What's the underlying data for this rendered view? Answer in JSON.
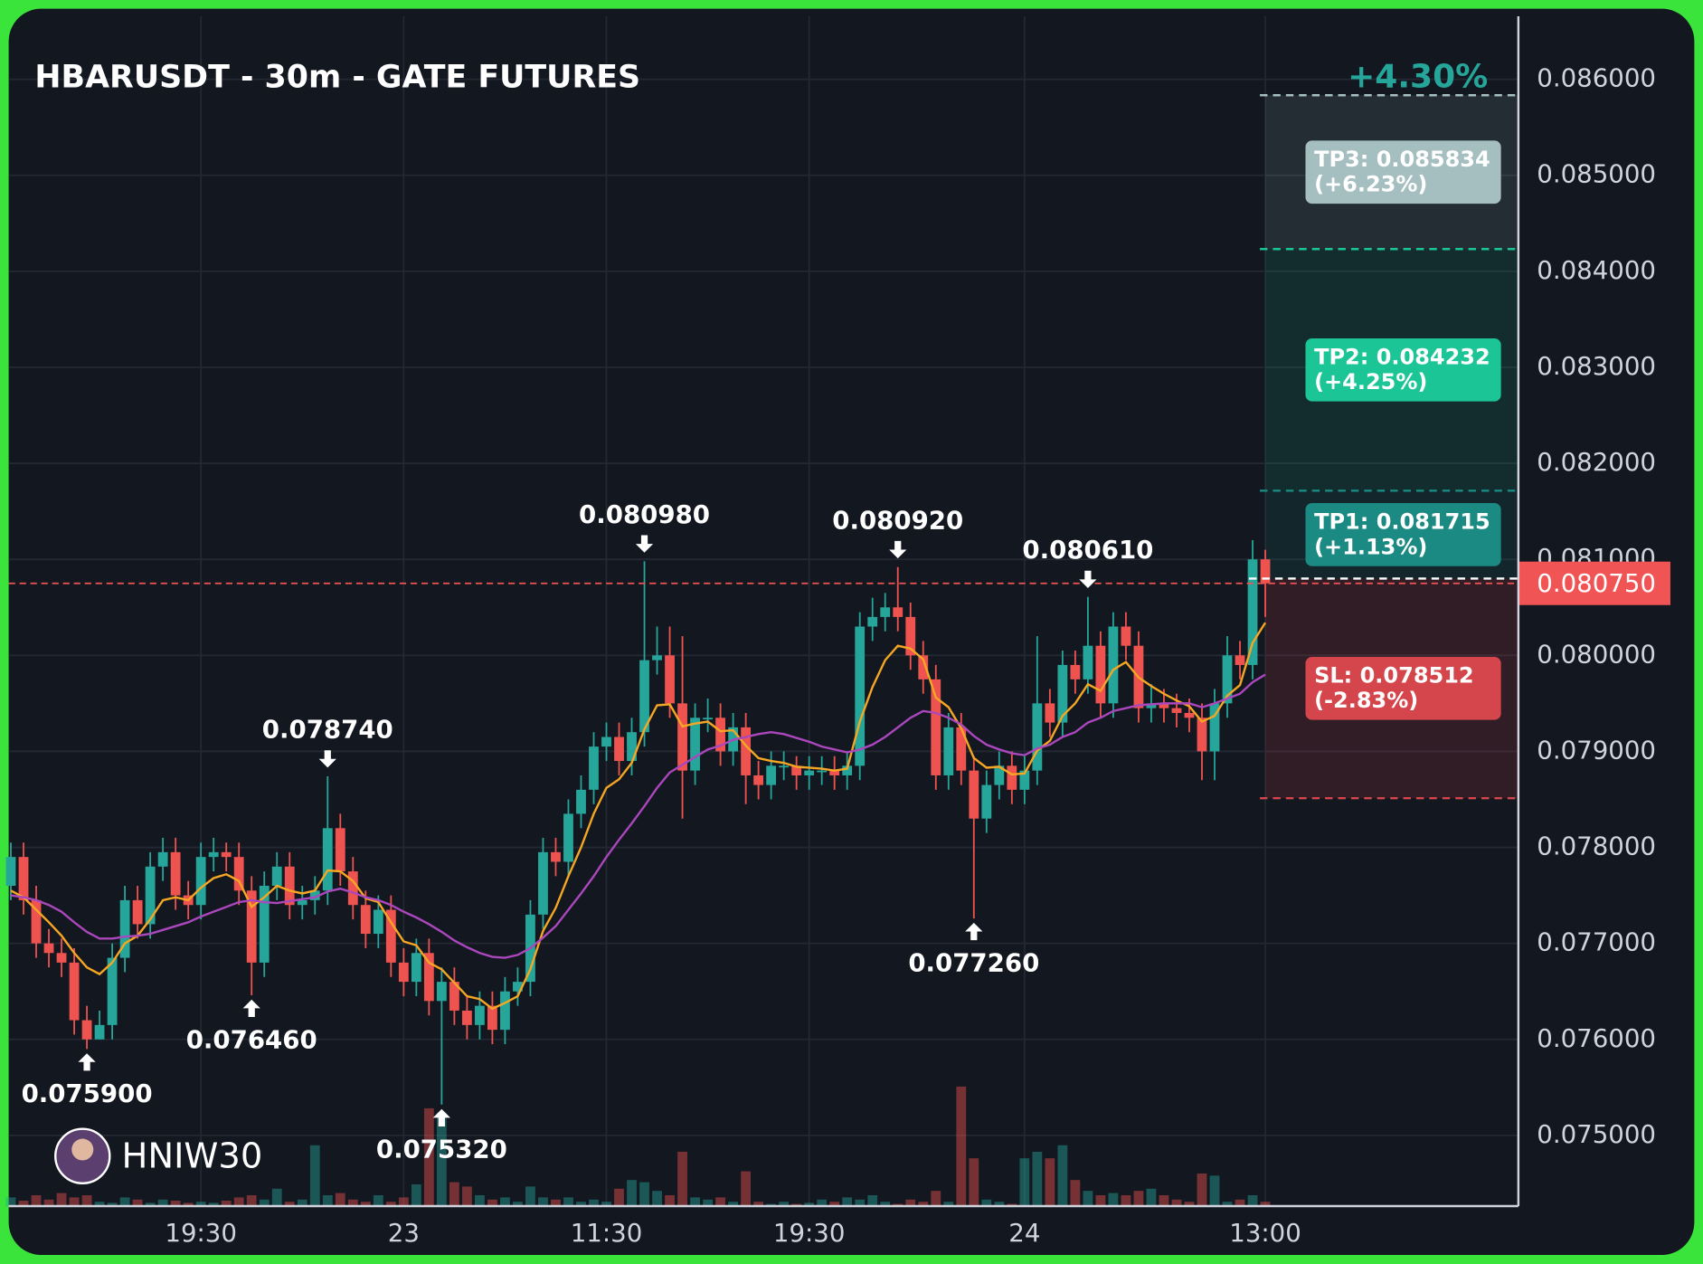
{
  "chart_data": {
    "type": "candlestick",
    "title": "HBARUSDT - 30m - GATE FUTURES",
    "watermark": "HNIW30",
    "pnl": "+4.30%",
    "pnl_color": "#26a69a",
    "up_color": "#26a69a",
    "down_color": "#ef5350",
    "grid": true,
    "ylim": [
      0.074264,
      0.086656
    ],
    "yticks": [
      {
        "value": 0.075,
        "label": "0.075000"
      },
      {
        "value": 0.076,
        "label": "0.076000"
      },
      {
        "value": 0.077,
        "label": "0.077000"
      },
      {
        "value": 0.078,
        "label": "0.078000"
      },
      {
        "value": 0.079,
        "label": "0.079000"
      },
      {
        "value": 0.08,
        "label": "0.080000"
      },
      {
        "value": 0.081,
        "label": "0.081000"
      },
      {
        "value": 0.082,
        "label": "0.082000"
      },
      {
        "value": 0.083,
        "label": "0.083000"
      },
      {
        "value": 0.084,
        "label": "0.084000"
      },
      {
        "value": 0.085,
        "label": "0.085000"
      },
      {
        "value": 0.086,
        "label": "0.086000"
      }
    ],
    "categories": [
      null,
      null,
      null,
      null,
      null,
      null,
      null,
      null,
      null,
      null,
      null,
      null,
      null,
      null,
      null,
      "19:30",
      null,
      null,
      null,
      null,
      null,
      null,
      null,
      null,
      null,
      null,
      null,
      null,
      null,
      null,
      null,
      "23",
      null,
      null,
      null,
      null,
      null,
      null,
      null,
      null,
      null,
      null,
      null,
      null,
      null,
      null,
      null,
      "11:30",
      null,
      null,
      null,
      null,
      null,
      null,
      null,
      null,
      null,
      null,
      null,
      null,
      null,
      null,
      null,
      "19:30",
      null,
      null,
      null,
      null,
      null,
      null,
      null,
      null,
      null,
      null,
      null,
      null,
      null,
      null,
      null,
      null,
      "24",
      null,
      null,
      null,
      null,
      null,
      null,
      null,
      null,
      null,
      null,
      null,
      null,
      null,
      null,
      null,
      null,
      null,
      null,
      "13:00"
    ],
    "open": [
      0.0776,
      0.0779,
      0.07745,
      0.077,
      0.0769,
      0.0768,
      0.0762,
      0.076,
      0.07615,
      0.07685,
      0.07745,
      0.0772,
      0.0778,
      0.07795,
      0.0775,
      0.0774,
      0.0779,
      0.07795,
      0.0779,
      0.07755,
      0.0768,
      0.0776,
      0.0778,
      0.0774,
      0.07745,
      0.07755,
      0.0782,
      0.07775,
      0.0774,
      0.0771,
      0.07735,
      0.0768,
      0.0766,
      0.0769,
      0.0764,
      0.0766,
      0.0763,
      0.07615,
      0.07635,
      0.0761,
      0.0765,
      0.0766,
      0.0773,
      0.07795,
      0.07785,
      0.07835,
      0.0786,
      0.07905,
      0.07915,
      0.0789,
      0.0792,
      0.07995,
      0.08,
      0.0795,
      0.0788,
      0.07935,
      0.07935,
      0.079,
      0.07925,
      0.07875,
      0.07865,
      0.07885,
      0.07885,
      0.07875,
      0.0788,
      0.0788,
      0.07875,
      0.07885,
      0.0803,
      0.0804,
      0.0805,
      0.0804,
      0.08,
      0.07975,
      0.07875,
      0.07925,
      0.0788,
      0.0783,
      0.07865,
      0.07885,
      0.0786,
      0.0788,
      0.0795,
      0.0793,
      0.0799,
      0.07975,
      0.0801,
      0.0795,
      0.0803,
      0.0801,
      0.07945,
      0.0795,
      0.07945,
      0.0794,
      0.07935,
      0.079,
      0.0795,
      0.08,
      0.0799,
      0.081
    ],
    "high": [
      0.07805,
      0.07805,
      0.0776,
      0.07715,
      0.07705,
      0.07695,
      0.07635,
      0.0763,
      0.077,
      0.0776,
      0.0776,
      0.07795,
      0.0781,
      0.0781,
      0.07765,
      0.07805,
      0.0781,
      0.07805,
      0.07805,
      0.0777,
      0.07775,
      0.07795,
      0.07795,
      0.0776,
      0.0777,
      0.07874,
      0.07835,
      0.0779,
      0.07755,
      0.0775,
      0.0775,
      0.07695,
      0.07705,
      0.07705,
      0.07675,
      0.07675,
      0.07645,
      0.0765,
      0.0765,
      0.07665,
      0.07675,
      0.07745,
      0.0781,
      0.0781,
      0.0785,
      0.07875,
      0.0792,
      0.0793,
      0.0793,
      0.07935,
      0.08098,
      0.0803,
      0.0803,
      0.0802,
      0.0795,
      0.07955,
      0.0795,
      0.0794,
      0.0794,
      0.0789,
      0.079,
      0.079,
      0.07895,
      0.07895,
      0.07895,
      0.07895,
      0.079,
      0.08045,
      0.0806,
      0.08065,
      0.08092,
      0.08055,
      0.08015,
      0.0799,
      0.0794,
      0.0794,
      0.07895,
      0.0788,
      0.079,
      0.079,
      0.07895,
      0.0802,
      0.07965,
      0.08005,
      0.08005,
      0.08061,
      0.08025,
      0.08045,
      0.08045,
      0.08025,
      0.0797,
      0.07965,
      0.0796,
      0.07955,
      0.0795,
      0.07965,
      0.0802,
      0.08015,
      0.0812,
      0.0811
    ],
    "low": [
      0.07745,
      0.0773,
      0.07685,
      0.07675,
      0.07665,
      0.07605,
      0.0759,
      0.076,
      0.076,
      0.0767,
      0.07705,
      0.07705,
      0.07765,
      0.07735,
      0.07725,
      0.07725,
      0.07775,
      0.07775,
      0.0774,
      0.07646,
      0.07665,
      0.07745,
      0.07725,
      0.07725,
      0.0773,
      0.0774,
      0.0776,
      0.07725,
      0.07695,
      0.07695,
      0.07665,
      0.07645,
      0.07645,
      0.07625,
      0.07532,
      0.07615,
      0.076,
      0.076,
      0.07595,
      0.07595,
      0.07635,
      0.07645,
      0.07715,
      0.0777,
      0.0777,
      0.0782,
      0.07845,
      0.0789,
      0.07875,
      0.07875,
      0.07905,
      0.0798,
      0.07935,
      0.0783,
      0.07865,
      0.0792,
      0.07885,
      0.07885,
      0.07845,
      0.0785,
      0.0785,
      0.0787,
      0.0786,
      0.0786,
      0.07865,
      0.0786,
      0.0786,
      0.0787,
      0.08015,
      0.08025,
      0.08025,
      0.07985,
      0.0796,
      0.0786,
      0.0786,
      0.07865,
      0.07726,
      0.07815,
      0.0785,
      0.07845,
      0.07845,
      0.07865,
      0.07915,
      0.07915,
      0.0796,
      0.0796,
      0.07935,
      0.07935,
      0.07995,
      0.0793,
      0.0793,
      0.0793,
      0.07925,
      0.0792,
      0.0787,
      0.0787,
      0.07935,
      0.07975,
      0.07975,
      0.0804
    ],
    "close": [
      0.0779,
      0.07745,
      0.077,
      0.0769,
      0.0768,
      0.0762,
      0.076,
      0.07615,
      0.07685,
      0.07745,
      0.0772,
      0.0778,
      0.07795,
      0.0775,
      0.0774,
      0.0779,
      0.07795,
      0.0779,
      0.07755,
      0.0768,
      0.0776,
      0.0778,
      0.0774,
      0.07745,
      0.07755,
      0.0782,
      0.07775,
      0.0774,
      0.0771,
      0.07735,
      0.0768,
      0.0766,
      0.0769,
      0.0764,
      0.0766,
      0.0763,
      0.07615,
      0.07635,
      0.0761,
      0.0765,
      0.0766,
      0.0773,
      0.07795,
      0.07785,
      0.07835,
      0.0786,
      0.07905,
      0.07915,
      0.0789,
      0.0792,
      0.07995,
      0.08,
      0.0795,
      0.0788,
      0.07935,
      0.07935,
      0.079,
      0.07925,
      0.07875,
      0.07865,
      0.07885,
      0.07885,
      0.07875,
      0.0788,
      0.0788,
      0.07875,
      0.07885,
      0.0803,
      0.0804,
      0.0805,
      0.0804,
      0.08,
      0.07975,
      0.07875,
      0.07925,
      0.0788,
      0.0783,
      0.07865,
      0.07885,
      0.0786,
      0.0788,
      0.0795,
      0.0793,
      0.0799,
      0.07975,
      0.0801,
      0.0795,
      0.0803,
      0.0801,
      0.07945,
      0.0795,
      0.07945,
      0.0794,
      0.07935,
      0.079,
      0.0795,
      0.08,
      0.0799,
      0.081,
      0.08075
    ],
    "volume": [
      8,
      5,
      10,
      6,
      12,
      8,
      10,
      4,
      3,
      8,
      6,
      3,
      6,
      5,
      3,
      4,
      3,
      5,
      8,
      10,
      6,
      16,
      4,
      6,
      56,
      10,
      12,
      6,
      4,
      10,
      4,
      8,
      20,
      90,
      86,
      22,
      18,
      10,
      6,
      8,
      4,
      18,
      8,
      6,
      8,
      4,
      6,
      4,
      16,
      24,
      22,
      14,
      10,
      50,
      8,
      6,
      8,
      4,
      32,
      4,
      2,
      4,
      2,
      3,
      6,
      4,
      8,
      6,
      10,
      4,
      2,
      6,
      4,
      14,
      4,
      110,
      44,
      6,
      4,
      2,
      44,
      50,
      44,
      56,
      24,
      14,
      10,
      12,
      10,
      14,
      16,
      10,
      6,
      4,
      30,
      28,
      4,
      6,
      10,
      4
    ],
    "ma_lines": [
      {
        "color": "#f5a623",
        "values": [
          0.07755,
          0.07748,
          0.07735,
          0.07722,
          0.07708,
          0.0769,
          0.07675,
          0.07668,
          0.0768,
          0.077,
          0.07708,
          0.07725,
          0.07745,
          0.07748,
          0.07745,
          0.07758,
          0.07768,
          0.07772,
          0.07765,
          0.07738,
          0.07748,
          0.0776,
          0.07755,
          0.07752,
          0.07755,
          0.07776,
          0.07775,
          0.07765,
          0.07747,
          0.07743,
          0.07722,
          0.07702,
          0.07698,
          0.0768,
          0.07673,
          0.07659,
          0.07645,
          0.07642,
          0.07632,
          0.07638,
          0.07645,
          0.07673,
          0.07713,
          0.07737,
          0.0777,
          0.078,
          0.07835,
          0.07862,
          0.07871,
          0.07888,
          0.07923,
          0.07948,
          0.07949,
          0.07926,
          0.07929,
          0.07931,
          0.07921,
          0.07922,
          0.07906,
          0.07893,
          0.0789,
          0.07888,
          0.07884,
          0.07883,
          0.07882,
          0.0788,
          0.07882,
          0.07931,
          0.07967,
          0.07995,
          0.0801,
          0.08007,
          0.07996,
          0.07956,
          0.07946,
          0.07924,
          0.07893,
          0.07883,
          0.07884,
          0.07876,
          0.07877,
          0.07901,
          0.07911,
          0.07937,
          0.0795,
          0.0797,
          0.07963,
          0.07985,
          0.07993,
          0.07977,
          0.07968,
          0.0796,
          0.07953,
          0.07947,
          0.07931,
          0.07937,
          0.07958,
          0.07969,
          0.08013,
          0.08034
        ]
      },
      {
        "color": "#ab47bc",
        "values": [
          0.0775,
          0.07748,
          0.07745,
          0.0774,
          0.07733,
          0.07722,
          0.07712,
          0.07705,
          0.07705,
          0.07707,
          0.07708,
          0.0771,
          0.07714,
          0.07718,
          0.07722,
          0.07728,
          0.07733,
          0.07738,
          0.07743,
          0.07745,
          0.07743,
          0.07742,
          0.07744,
          0.07746,
          0.07748,
          0.07754,
          0.07757,
          0.07753,
          0.07748,
          0.07745,
          0.0774,
          0.07733,
          0.07727,
          0.0772,
          0.07712,
          0.07703,
          0.07696,
          0.0769,
          0.07686,
          0.07685,
          0.07688,
          0.07695,
          0.07706,
          0.07718,
          0.07735,
          0.07752,
          0.0777,
          0.0779,
          0.07808,
          0.07825,
          0.07843,
          0.07862,
          0.07878,
          0.07886,
          0.07894,
          0.07902,
          0.07906,
          0.07912,
          0.07915,
          0.07918,
          0.0792,
          0.07918,
          0.07914,
          0.0791,
          0.07905,
          0.07902,
          0.07899,
          0.07902,
          0.07907,
          0.07915,
          0.07925,
          0.07935,
          0.07942,
          0.0794,
          0.07935,
          0.07928,
          0.07916,
          0.07907,
          0.07902,
          0.07898,
          0.07896,
          0.07903,
          0.07907,
          0.07915,
          0.0792,
          0.0793,
          0.07935,
          0.07942,
          0.07945,
          0.07948,
          0.07949,
          0.0795,
          0.0795,
          0.0795,
          0.07946,
          0.0795,
          0.07955,
          0.0796,
          0.07972,
          0.0798
        ]
      }
    ],
    "annotations": [
      {
        "text": "0.075900",
        "value": 0.0759,
        "candle": 6,
        "side": "low"
      },
      {
        "text": "0.076460",
        "value": 0.07646,
        "candle": 19,
        "side": "low"
      },
      {
        "text": "0.078740",
        "value": 0.07874,
        "candle": 25,
        "side": "high"
      },
      {
        "text": "0.075320",
        "value": 0.07532,
        "candle": 34,
        "side": "low"
      },
      {
        "text": "0.080980",
        "value": 0.08098,
        "candle": 50,
        "side": "high"
      },
      {
        "text": "0.080920",
        "value": 0.08092,
        "candle": 70,
        "side": "high"
      },
      {
        "text": "0.077260",
        "value": 0.07726,
        "candle": 76,
        "side": "low"
      },
      {
        "text": "0.080610",
        "value": 0.08061,
        "candle": 85,
        "side": "high"
      }
    ],
    "last_price": {
      "value": 0.08075,
      "label": "0.080750",
      "color": "#f05454"
    },
    "entry": 0.0808,
    "targets": [
      {
        "label": "TP3: 0.085834",
        "change": "(+6.23%)",
        "value": 0.085834,
        "color": "#a5bfc1"
      },
      {
        "label": "TP2: 0.084232",
        "change": "(+4.25%)",
        "value": 0.084232,
        "color": "#1bc596"
      },
      {
        "label": "TP1: 0.081715",
        "change": "(+1.13%)",
        "value": 0.081715,
        "color": "#1a8a82"
      }
    ],
    "stop": {
      "label": "SL: 0.078512",
      "change": "(-2.83%)",
      "value": 0.078512,
      "color": "#d4464c"
    }
  }
}
